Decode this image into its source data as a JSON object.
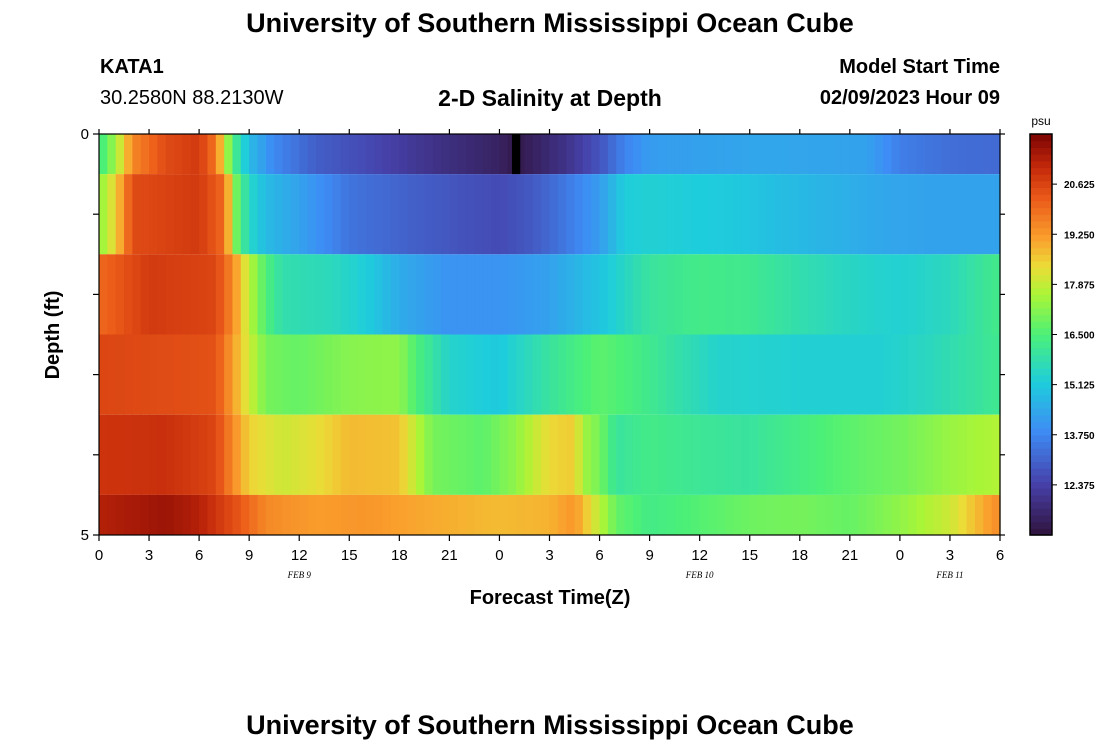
{
  "header": {
    "title": "University of Southern Mississippi Ocean Cube",
    "station_id": "KATA1",
    "station_coords": "30.2580N  88.2130W",
    "model_label": "Model Start Time",
    "model_time": "02/09/2023 Hour 09"
  },
  "footer": {
    "title": "University of Southern Mississippi Ocean Cube"
  },
  "chart_data": {
    "type": "heatmap",
    "title": "2-D Salinity at Depth",
    "xlabel": "Forecast Time(Z)",
    "ylabel": "Depth (ft)",
    "colorbar_label": "psu",
    "x_tick_labels": [
      "0",
      "3",
      "6",
      "9",
      "12",
      "15",
      "18",
      "21",
      "0",
      "3",
      "6",
      "9",
      "12",
      "15",
      "18",
      "21",
      "0",
      "3",
      "6"
    ],
    "x_range_hours": [
      0,
      54
    ],
    "date_labels": [
      {
        "text": "FEB 9",
        "hour": 12
      },
      {
        "text": "FEB 10",
        "hour": 36
      },
      {
        "text": "FEB 11",
        "hour": 51
      }
    ],
    "y_tick_labels": [
      "0",
      "5"
    ],
    "ylim": [
      0,
      5
    ],
    "colorbar_ticks": [
      "20.625",
      "19.250",
      "17.875",
      "16.500",
      "15.125",
      "13.750",
      "12.375"
    ],
    "colorbar_range": [
      11.0,
      22.0
    ],
    "depth_bands": [
      {
        "from": 0,
        "to": 0.5,
        "knots": [
          [
            0,
            16.2
          ],
          [
            1,
            17.5
          ],
          [
            2,
            19.5
          ],
          [
            4,
            20.5
          ],
          [
            6,
            20.8
          ],
          [
            7,
            19.8
          ],
          [
            7.6,
            17.8
          ],
          [
            8,
            16.5
          ],
          [
            9,
            14.8
          ],
          [
            10.5,
            13.8
          ],
          [
            13,
            13.0
          ],
          [
            16,
            12.6
          ],
          [
            20,
            12.0
          ],
          [
            24,
            11.5
          ],
          [
            25,
            11.2
          ],
          [
            28,
            12.0
          ],
          [
            30,
            12.8
          ],
          [
            31.5,
            13.7
          ],
          [
            33,
            14.2
          ],
          [
            40,
            14.4
          ],
          [
            46,
            14.3
          ],
          [
            48,
            13.6
          ],
          [
            51,
            13.3
          ],
          [
            54,
            13.2
          ]
        ]
      },
      {
        "from": 0.5,
        "to": 1.5,
        "knots": [
          [
            0,
            17.2
          ],
          [
            1,
            18.5
          ],
          [
            2,
            20.5
          ],
          [
            6,
            20.8
          ],
          [
            7.5,
            20.0
          ],
          [
            8.2,
            17.0
          ],
          [
            9,
            15.5
          ],
          [
            10,
            14.8
          ],
          [
            12,
            14.3
          ],
          [
            15,
            13.4
          ],
          [
            19,
            13.0
          ],
          [
            24,
            12.6
          ],
          [
            26,
            12.9
          ],
          [
            28,
            13.5
          ],
          [
            30,
            14.2
          ],
          [
            31.5,
            15.2
          ],
          [
            33,
            15.3
          ],
          [
            38,
            15.1
          ],
          [
            43,
            14.7
          ],
          [
            47,
            14.4
          ],
          [
            50,
            14.3
          ],
          [
            54,
            14.3
          ]
        ]
      },
      {
        "from": 1.5,
        "to": 2.5,
        "knots": [
          [
            0,
            20.0
          ],
          [
            3,
            20.8
          ],
          [
            7,
            20.6
          ],
          [
            8,
            19.5
          ],
          [
            9,
            17.8
          ],
          [
            10,
            16.5
          ],
          [
            11,
            15.8
          ],
          [
            14,
            15.6
          ],
          [
            16,
            15.2
          ],
          [
            18,
            14.5
          ],
          [
            21,
            14.0
          ],
          [
            24,
            14.0
          ],
          [
            27,
            14.3
          ],
          [
            30,
            15.0
          ],
          [
            33,
            16.0
          ],
          [
            36,
            16.3
          ],
          [
            39,
            16.2
          ],
          [
            42,
            15.8
          ],
          [
            45,
            15.5
          ],
          [
            48,
            15.3
          ],
          [
            51,
            15.6
          ],
          [
            54,
            16.3
          ]
        ]
      },
      {
        "from": 2.5,
        "to": 3.5,
        "knots": [
          [
            0,
            20.6
          ],
          [
            7,
            20.4
          ],
          [
            8,
            19.2
          ],
          [
            9,
            18.0
          ],
          [
            10,
            17.0
          ],
          [
            12,
            16.8
          ],
          [
            15,
            17.2
          ],
          [
            18,
            17.3
          ],
          [
            19,
            16.5
          ],
          [
            21,
            15.4
          ],
          [
            24,
            15.1
          ],
          [
            27,
            16.0
          ],
          [
            30,
            16.7
          ],
          [
            32,
            16.4
          ],
          [
            34,
            16.0
          ],
          [
            37,
            15.4
          ],
          [
            42,
            15.3
          ],
          [
            47,
            15.3
          ],
          [
            50,
            15.6
          ],
          [
            54,
            16.2
          ]
        ]
      },
      {
        "from": 3.5,
        "to": 4.5,
        "knots": [
          [
            0,
            20.9
          ],
          [
            4,
            21.0
          ],
          [
            7,
            20.6
          ],
          [
            8,
            19.5
          ],
          [
            9,
            18.5
          ],
          [
            11,
            18.0
          ],
          [
            13,
            18.3
          ],
          [
            15,
            18.8
          ],
          [
            18,
            18.7
          ],
          [
            19,
            17.8
          ],
          [
            20,
            17.0
          ],
          [
            23,
            16.7
          ],
          [
            25,
            17.3
          ],
          [
            27,
            18.4
          ],
          [
            28.5,
            18.6
          ],
          [
            29,
            17.5
          ],
          [
            30,
            17.0
          ],
          [
            31,
            16.0
          ],
          [
            33,
            16.3
          ],
          [
            36,
            16.1
          ],
          [
            39,
            16.0
          ],
          [
            45,
            16.7
          ],
          [
            48.5,
            17.0
          ],
          [
            51,
            17.4
          ],
          [
            54,
            17.7
          ]
        ]
      },
      {
        "from": 4.5,
        "to": 5.0,
        "knots": [
          [
            0,
            21.3
          ],
          [
            4,
            21.6
          ],
          [
            6,
            21.3
          ],
          [
            8,
            20.5
          ],
          [
            10,
            19.5
          ],
          [
            13,
            19.2
          ],
          [
            16,
            19.3
          ],
          [
            20,
            19.0
          ],
          [
            24,
            18.8
          ],
          [
            27,
            18.9
          ],
          [
            28.5,
            19.3
          ],
          [
            30,
            17.8
          ],
          [
            31,
            16.8
          ],
          [
            33,
            16.3
          ],
          [
            36,
            16.6
          ],
          [
            39,
            16.9
          ],
          [
            42,
            17.0
          ],
          [
            45,
            16.8
          ],
          [
            48,
            17.3
          ],
          [
            51,
            18.0
          ],
          [
            54,
            19.5
          ]
        ]
      }
    ],
    "missing_cell": {
      "hour": 25,
      "depth_from": 0,
      "depth_to": 0.5
    }
  }
}
